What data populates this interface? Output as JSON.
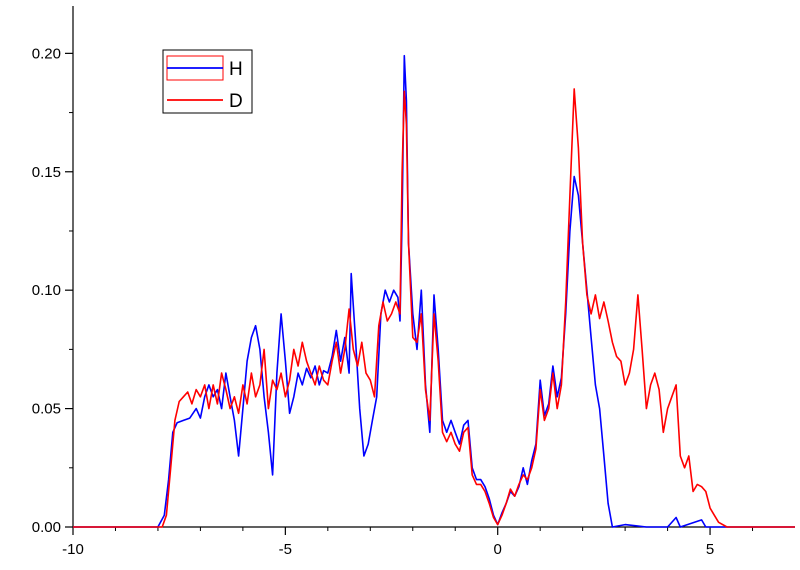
{
  "chart_data": {
    "type": "line",
    "title": "",
    "xlabel": "",
    "ylabel": "",
    "xlim": [
      -10,
      7
    ],
    "ylim": [
      0,
      0.22
    ],
    "x_ticks": [
      -10,
      -5,
      0,
      5
    ],
    "x_tick_labels": [
      "-10",
      "-5",
      "0",
      "5"
    ],
    "y_ticks": [
      0.0,
      0.05,
      0.1,
      0.15,
      0.2
    ],
    "y_tick_labels": [
      "0.00",
      "0.05",
      "0.10",
      "0.15",
      "0.20"
    ],
    "grid": false,
    "legend_position": "top-left",
    "series": [
      {
        "name": "H",
        "color": "#0000ff",
        "points": [
          [
            -10,
            0
          ],
          [
            -8.0,
            0
          ],
          [
            -7.85,
            0.005
          ],
          [
            -7.75,
            0.02
          ],
          [
            -7.65,
            0.04
          ],
          [
            -7.55,
            0.044
          ],
          [
            -7.4,
            0.045
          ],
          [
            -7.25,
            0.046
          ],
          [
            -7.1,
            0.05
          ],
          [
            -7.0,
            0.046
          ],
          [
            -6.9,
            0.055
          ],
          [
            -6.8,
            0.06
          ],
          [
            -6.7,
            0.055
          ],
          [
            -6.6,
            0.058
          ],
          [
            -6.5,
            0.05
          ],
          [
            -6.4,
            0.065
          ],
          [
            -6.3,
            0.055
          ],
          [
            -6.2,
            0.045
          ],
          [
            -6.1,
            0.03
          ],
          [
            -6.0,
            0.05
          ],
          [
            -5.9,
            0.07
          ],
          [
            -5.8,
            0.08
          ],
          [
            -5.7,
            0.085
          ],
          [
            -5.6,
            0.075
          ],
          [
            -5.5,
            0.055
          ],
          [
            -5.4,
            0.04
          ],
          [
            -5.3,
            0.022
          ],
          [
            -5.2,
            0.065
          ],
          [
            -5.1,
            0.09
          ],
          [
            -5.0,
            0.07
          ],
          [
            -4.9,
            0.048
          ],
          [
            -4.8,
            0.055
          ],
          [
            -4.7,
            0.065
          ],
          [
            -4.6,
            0.06
          ],
          [
            -4.5,
            0.067
          ],
          [
            -4.4,
            0.063
          ],
          [
            -4.3,
            0.068
          ],
          [
            -4.2,
            0.06
          ],
          [
            -4.1,
            0.066
          ],
          [
            -4.0,
            0.065
          ],
          [
            -3.9,
            0.072
          ],
          [
            -3.8,
            0.083
          ],
          [
            -3.7,
            0.07
          ],
          [
            -3.6,
            0.08
          ],
          [
            -3.5,
            0.065
          ],
          [
            -3.45,
            0.107
          ],
          [
            -3.35,
            0.08
          ],
          [
            -3.25,
            0.05
          ],
          [
            -3.15,
            0.03
          ],
          [
            -3.05,
            0.035
          ],
          [
            -2.95,
            0.045
          ],
          [
            -2.85,
            0.055
          ],
          [
            -2.75,
            0.09
          ],
          [
            -2.65,
            0.1
          ],
          [
            -2.55,
            0.095
          ],
          [
            -2.45,
            0.1
          ],
          [
            -2.35,
            0.097
          ],
          [
            -2.3,
            0.087
          ],
          [
            -2.25,
            0.13
          ],
          [
            -2.2,
            0.199
          ],
          [
            -2.15,
            0.18
          ],
          [
            -2.1,
            0.12
          ],
          [
            -2.0,
            0.09
          ],
          [
            -1.9,
            0.075
          ],
          [
            -1.8,
            0.1
          ],
          [
            -1.7,
            0.06
          ],
          [
            -1.6,
            0.04
          ],
          [
            -1.5,
            0.098
          ],
          [
            -1.4,
            0.075
          ],
          [
            -1.3,
            0.045
          ],
          [
            -1.2,
            0.04
          ],
          [
            -1.1,
            0.045
          ],
          [
            -1.0,
            0.04
          ],
          [
            -0.9,
            0.035
          ],
          [
            -0.8,
            0.043
          ],
          [
            -0.7,
            0.045
          ],
          [
            -0.6,
            0.025
          ],
          [
            -0.5,
            0.02
          ],
          [
            -0.4,
            0.02
          ],
          [
            -0.3,
            0.017
          ],
          [
            -0.2,
            0.012
          ],
          [
            -0.1,
            0.005
          ],
          [
            0.0,
            0.001
          ],
          [
            0.1,
            0.006
          ],
          [
            0.2,
            0.01
          ],
          [
            0.3,
            0.015
          ],
          [
            0.4,
            0.013
          ],
          [
            0.5,
            0.017
          ],
          [
            0.6,
            0.025
          ],
          [
            0.7,
            0.018
          ],
          [
            0.8,
            0.028
          ],
          [
            0.9,
            0.035
          ],
          [
            1.0,
            0.062
          ],
          [
            1.1,
            0.047
          ],
          [
            1.2,
            0.052
          ],
          [
            1.3,
            0.068
          ],
          [
            1.4,
            0.055
          ],
          [
            1.5,
            0.063
          ],
          [
            1.6,
            0.09
          ],
          [
            1.7,
            0.125
          ],
          [
            1.8,
            0.148
          ],
          [
            1.9,
            0.14
          ],
          [
            2.0,
            0.12
          ],
          [
            2.1,
            0.1
          ],
          [
            2.2,
            0.08
          ],
          [
            2.3,
            0.06
          ],
          [
            2.4,
            0.05
          ],
          [
            2.5,
            0.03
          ],
          [
            2.6,
            0.01
          ],
          [
            2.7,
            0.0
          ],
          [
            3.0,
            0.001
          ],
          [
            3.5,
            0.0
          ],
          [
            4.0,
            0.0
          ],
          [
            4.2,
            0.004
          ],
          [
            4.3,
            0.0
          ],
          [
            4.8,
            0.003
          ],
          [
            4.9,
            0.0
          ],
          [
            7,
            0
          ]
        ]
      },
      {
        "name": "D",
        "color": "#ff0000",
        "points": [
          [
            -10,
            0
          ],
          [
            -7.9,
            0
          ],
          [
            -7.8,
            0.005
          ],
          [
            -7.7,
            0.025
          ],
          [
            -7.6,
            0.045
          ],
          [
            -7.5,
            0.053
          ],
          [
            -7.4,
            0.055
          ],
          [
            -7.3,
            0.057
          ],
          [
            -7.2,
            0.052
          ],
          [
            -7.1,
            0.058
          ],
          [
            -7.0,
            0.055
          ],
          [
            -6.9,
            0.06
          ],
          [
            -6.8,
            0.05
          ],
          [
            -6.7,
            0.06
          ],
          [
            -6.6,
            0.052
          ],
          [
            -6.5,
            0.065
          ],
          [
            -6.4,
            0.058
          ],
          [
            -6.3,
            0.05
          ],
          [
            -6.2,
            0.055
          ],
          [
            -6.1,
            0.048
          ],
          [
            -6.0,
            0.06
          ],
          [
            -5.9,
            0.052
          ],
          [
            -5.8,
            0.065
          ],
          [
            -5.7,
            0.055
          ],
          [
            -5.6,
            0.06
          ],
          [
            -5.5,
            0.075
          ],
          [
            -5.4,
            0.05
          ],
          [
            -5.3,
            0.062
          ],
          [
            -5.2,
            0.058
          ],
          [
            -5.1,
            0.065
          ],
          [
            -5.0,
            0.055
          ],
          [
            -4.9,
            0.062
          ],
          [
            -4.8,
            0.075
          ],
          [
            -4.7,
            0.068
          ],
          [
            -4.6,
            0.078
          ],
          [
            -4.5,
            0.07
          ],
          [
            -4.4,
            0.065
          ],
          [
            -4.3,
            0.06
          ],
          [
            -4.2,
            0.068
          ],
          [
            -4.1,
            0.062
          ],
          [
            -4.0,
            0.06
          ],
          [
            -3.9,
            0.07
          ],
          [
            -3.8,
            0.078
          ],
          [
            -3.7,
            0.065
          ],
          [
            -3.6,
            0.075
          ],
          [
            -3.5,
            0.092
          ],
          [
            -3.4,
            0.075
          ],
          [
            -3.3,
            0.068
          ],
          [
            -3.2,
            0.078
          ],
          [
            -3.1,
            0.065
          ],
          [
            -3.0,
            0.062
          ],
          [
            -2.9,
            0.055
          ],
          [
            -2.8,
            0.085
          ],
          [
            -2.7,
            0.095
          ],
          [
            -2.6,
            0.087
          ],
          [
            -2.5,
            0.09
          ],
          [
            -2.4,
            0.095
          ],
          [
            -2.3,
            0.09
          ],
          [
            -2.25,
            0.15
          ],
          [
            -2.2,
            0.184
          ],
          [
            -2.15,
            0.17
          ],
          [
            -2.1,
            0.12
          ],
          [
            -2.0,
            0.08
          ],
          [
            -1.9,
            0.078
          ],
          [
            -1.8,
            0.09
          ],
          [
            -1.7,
            0.058
          ],
          [
            -1.6,
            0.045
          ],
          [
            -1.5,
            0.09
          ],
          [
            -1.4,
            0.07
          ],
          [
            -1.3,
            0.04
          ],
          [
            -1.2,
            0.036
          ],
          [
            -1.1,
            0.04
          ],
          [
            -1.0,
            0.035
          ],
          [
            -0.9,
            0.032
          ],
          [
            -0.8,
            0.04
          ],
          [
            -0.7,
            0.042
          ],
          [
            -0.6,
            0.022
          ],
          [
            -0.5,
            0.018
          ],
          [
            -0.4,
            0.018
          ],
          [
            -0.3,
            0.015
          ],
          [
            -0.2,
            0.01
          ],
          [
            -0.1,
            0.004
          ],
          [
            0.0,
            0.001
          ],
          [
            0.1,
            0.005
          ],
          [
            0.2,
            0.01
          ],
          [
            0.3,
            0.016
          ],
          [
            0.4,
            0.013
          ],
          [
            0.5,
            0.018
          ],
          [
            0.6,
            0.022
          ],
          [
            0.7,
            0.02
          ],
          [
            0.8,
            0.025
          ],
          [
            0.9,
            0.033
          ],
          [
            1.0,
            0.058
          ],
          [
            1.1,
            0.045
          ],
          [
            1.2,
            0.05
          ],
          [
            1.3,
            0.065
          ],
          [
            1.4,
            0.05
          ],
          [
            1.5,
            0.06
          ],
          [
            1.6,
            0.095
          ],
          [
            1.7,
            0.14
          ],
          [
            1.8,
            0.185
          ],
          [
            1.9,
            0.16
          ],
          [
            2.0,
            0.12
          ],
          [
            2.1,
            0.098
          ],
          [
            2.2,
            0.09
          ],
          [
            2.3,
            0.098
          ],
          [
            2.4,
            0.088
          ],
          [
            2.5,
            0.095
          ],
          [
            2.6,
            0.087
          ],
          [
            2.7,
            0.078
          ],
          [
            2.8,
            0.072
          ],
          [
            2.9,
            0.07
          ],
          [
            3.0,
            0.06
          ],
          [
            3.1,
            0.065
          ],
          [
            3.2,
            0.075
          ],
          [
            3.3,
            0.098
          ],
          [
            3.4,
            0.075
          ],
          [
            3.5,
            0.05
          ],
          [
            3.6,
            0.06
          ],
          [
            3.7,
            0.065
          ],
          [
            3.8,
            0.058
          ],
          [
            3.9,
            0.04
          ],
          [
            4.0,
            0.05
          ],
          [
            4.1,
            0.055
          ],
          [
            4.2,
            0.06
          ],
          [
            4.3,
            0.03
          ],
          [
            4.4,
            0.025
          ],
          [
            4.5,
            0.03
          ],
          [
            4.6,
            0.015
          ],
          [
            4.7,
            0.018
          ],
          [
            4.8,
            0.017
          ],
          [
            4.9,
            0.015
          ],
          [
            5.0,
            0.008
          ],
          [
            5.1,
            0.005
          ],
          [
            5.2,
            0.002
          ],
          [
            5.4,
            0.0
          ],
          [
            7,
            0
          ]
        ]
      }
    ]
  }
}
